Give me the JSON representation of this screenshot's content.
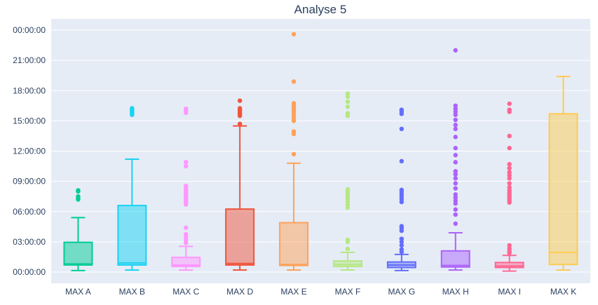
{
  "chart_data": {
    "type": "box",
    "title": "Analyse 5",
    "xlabel": "",
    "ylabel": "",
    "y_unit": "hours",
    "ylim": [
      -1.4,
      24.2
    ],
    "y_ticks": [
      0,
      3,
      6,
      9,
      12,
      15,
      18,
      21,
      24
    ],
    "y_tick_labels": [
      "00:00:00",
      "03:00:00",
      "06:00:00",
      "09:00:00",
      "12:00:00",
      "15:00:00",
      "18:00:00",
      "21:00:00",
      "00:00:00"
    ],
    "grid": true,
    "legend": "none",
    "plot_bg": "#e5ecf6",
    "categories": [
      "MAX A",
      "MAX B",
      "MAX C",
      "MAX D",
      "MAX E",
      "MAX F",
      "MAX G",
      "MAX H",
      "MAX I",
      "MAX K"
    ],
    "series": [
      {
        "color": "#00cc96",
        "min": 0.15,
        "q1": 0.7,
        "median": 0.8,
        "q3": 2.95,
        "max": 5.4,
        "outliers": [
          7.2,
          7.35,
          7.5,
          8.0,
          8.1
        ]
      },
      {
        "color": "#19d3f3",
        "min": 0.2,
        "q1": 0.7,
        "median": 0.9,
        "q3": 6.6,
        "max": 11.2,
        "outliers": [
          15.6,
          15.75,
          15.85,
          15.95,
          16.05,
          16.15,
          16.25
        ]
      },
      {
        "color": "#ff97ff",
        "min": 0.2,
        "q1": 0.55,
        "median": 0.7,
        "q3": 1.45,
        "max": 2.55,
        "outliers": [
          2.9,
          3.2,
          3.5,
          3.75,
          4.4,
          6.7,
          6.85,
          7.0,
          7.15,
          7.3,
          7.45,
          7.6,
          7.75,
          7.9,
          8.05,
          8.2,
          8.4,
          8.55,
          10.5,
          10.9,
          15.8,
          16.0,
          16.2
        ]
      },
      {
        "color": "#ef553b",
        "min": 0.2,
        "q1": 0.7,
        "median": 0.85,
        "q3": 6.25,
        "max": 14.5,
        "outliers": [
          14.7,
          15.5,
          15.65,
          15.8,
          15.95,
          16.1,
          16.25,
          17.0
        ]
      },
      {
        "color": "#ffa15a",
        "min": 0.2,
        "q1": 0.65,
        "median": 0.75,
        "q3": 4.9,
        "max": 10.8,
        "outliers": [
          11.7,
          13.7,
          13.95,
          15.0,
          15.2,
          15.45,
          15.7,
          15.9,
          16.1,
          16.3,
          16.55,
          16.75,
          18.9,
          23.6
        ]
      },
      {
        "color": "#b6e880",
        "min": 0.2,
        "q1": 0.55,
        "median": 0.75,
        "q3": 1.1,
        "max": 1.95,
        "outliers": [
          2.3,
          3.0,
          3.2,
          6.4,
          6.7,
          7.0,
          7.25,
          7.5,
          7.75,
          8.0,
          8.2,
          15.5,
          15.75,
          16.4,
          16.9,
          17.4,
          17.7
        ]
      },
      {
        "color": "#636efa",
        "min": 0.15,
        "q1": 0.45,
        "median": 0.7,
        "q3": 1.0,
        "max": 1.75,
        "outliers": [
          2.0,
          2.25,
          2.65,
          3.0,
          3.3,
          4.1,
          4.35,
          4.55,
          6.95,
          7.2,
          7.45,
          7.7,
          7.95,
          8.15,
          11.0,
          14.2,
          15.7,
          15.9,
          16.1
        ]
      },
      {
        "color": "#ab63fa",
        "min": 0.2,
        "q1": 0.5,
        "median": 0.65,
        "q3": 2.1,
        "max": 3.9,
        "outliers": [
          4.8,
          5.7,
          6.2,
          6.8,
          7.1,
          7.4,
          7.7,
          8.3,
          8.8,
          9.3,
          9.7,
          10.0,
          10.9,
          11.6,
          12.3,
          13.4,
          14.2,
          14.6,
          15.1,
          15.6,
          15.9,
          16.2,
          16.5,
          22.0
        ]
      },
      {
        "color": "#ff6692",
        "min": 0.1,
        "q1": 0.45,
        "median": 0.6,
        "q3": 0.95,
        "max": 1.65,
        "outliers": [
          1.9,
          2.1,
          2.35,
          2.65,
          6.9,
          7.1,
          7.3,
          7.5,
          7.7,
          7.9,
          8.1,
          8.4,
          8.8,
          9.3,
          9.6,
          9.9,
          10.3,
          10.7,
          12.3,
          13.5,
          15.9,
          16.1,
          16.7
        ]
      },
      {
        "color": "#fecb52",
        "min": 0.2,
        "q1": 0.75,
        "median": 1.95,
        "q3": 15.7,
        "max": 19.4,
        "outliers": []
      }
    ]
  }
}
